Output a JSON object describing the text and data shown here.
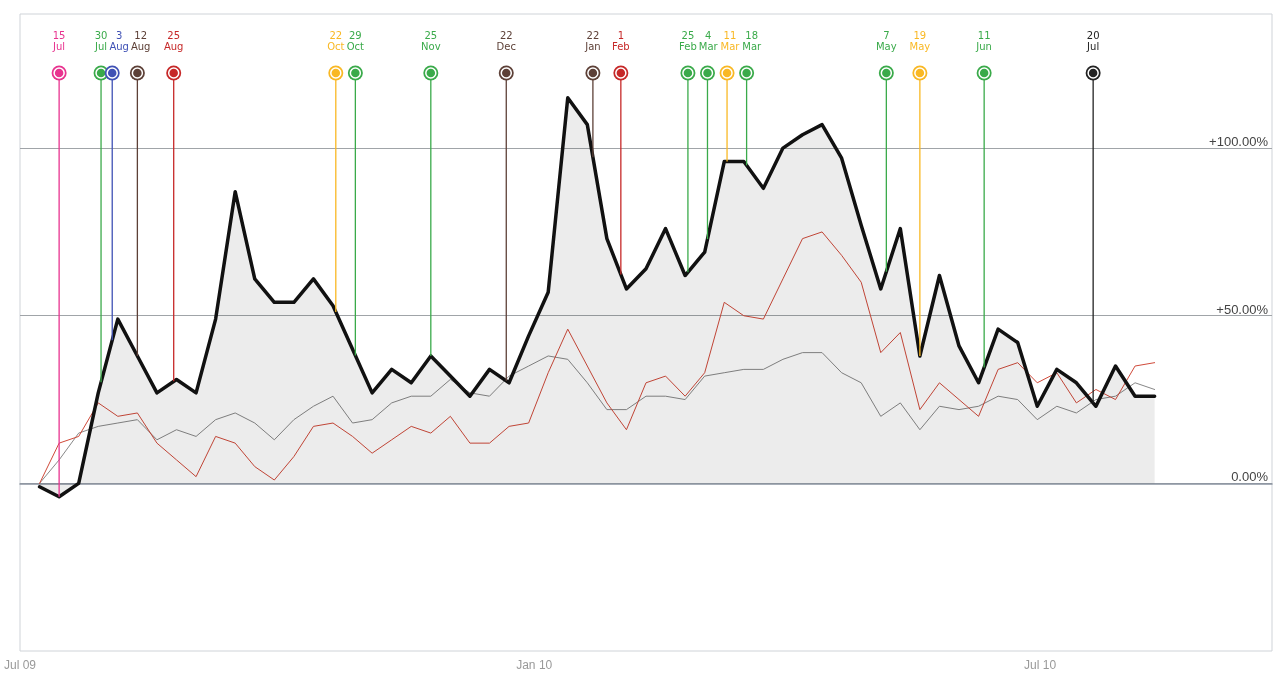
{
  "chart_data": {
    "type": "line",
    "x": [
      "2009-07-08",
      "2009-07-15",
      "2009-07-22",
      "2009-07-29",
      "2009-08-05",
      "2009-08-12",
      "2009-08-19",
      "2009-08-26",
      "2009-09-02",
      "2009-09-09",
      "2009-09-16",
      "2009-09-23",
      "2009-09-30",
      "2009-10-07",
      "2009-10-14",
      "2009-10-21",
      "2009-10-28",
      "2009-11-04",
      "2009-11-11",
      "2009-11-18",
      "2009-11-25",
      "2009-12-02",
      "2009-12-09",
      "2009-12-16",
      "2009-12-23",
      "2009-12-30",
      "2010-01-06",
      "2010-01-13",
      "2010-01-20",
      "2010-01-27",
      "2010-02-03",
      "2010-02-10",
      "2010-02-17",
      "2010-02-24",
      "2010-03-03",
      "2010-03-10",
      "2010-03-17",
      "2010-03-24",
      "2010-03-31",
      "2010-04-07",
      "2010-04-14",
      "2010-04-21",
      "2010-04-28",
      "2010-05-05",
      "2010-05-12",
      "2010-05-19",
      "2010-05-26",
      "2010-06-02",
      "2010-06-09",
      "2010-06-16",
      "2010-06-23",
      "2010-06-30",
      "2010-07-07",
      "2010-07-14",
      "2010-07-21",
      "2010-07-28",
      "2010-08-04",
      "2010-08-11"
    ],
    "series": [
      {
        "type": "area",
        "color": "#111111",
        "values": [
          -1,
          -4,
          0,
          27,
          49,
          38,
          27,
          31,
          27,
          49,
          87,
          61,
          54,
          54,
          61,
          53,
          40,
          27,
          34,
          30,
          38,
          32,
          26,
          34,
          30,
          44,
          57,
          115,
          107,
          73,
          58,
          64,
          76,
          62,
          69,
          96,
          96,
          88,
          100,
          104,
          107,
          97,
          77,
          58,
          76,
          38,
          62,
          41,
          30,
          46,
          42,
          23,
          34,
          30,
          23,
          35,
          26,
          26
        ]
      },
      {
        "color": "#d04a3a",
        "values": [
          0,
          12,
          14,
          24,
          20,
          21,
          12,
          7,
          2,
          14,
          12,
          5,
          1,
          8,
          17,
          18,
          14,
          9,
          13,
          17,
          15,
          20,
          12,
          12,
          17,
          18,
          33,
          46,
          35,
          24,
          16,
          30,
          32,
          26,
          33,
          54,
          50,
          49,
          61,
          73,
          75,
          68,
          60,
          39,
          45,
          22,
          30,
          25,
          20,
          34,
          36,
          30,
          33,
          24,
          28,
          25,
          35,
          36
        ]
      },
      {
        "color": "#888888",
        "values": [
          0,
          7,
          15,
          17,
          18,
          19,
          13,
          16,
          14,
          19,
          21,
          18,
          13,
          19,
          23,
          26,
          18,
          19,
          24,
          26,
          26,
          31,
          27,
          26,
          32,
          35,
          38,
          37,
          30,
          22,
          22,
          26,
          26,
          25,
          32,
          33,
          34,
          34,
          37,
          39,
          39,
          33,
          30,
          20,
          24,
          16,
          23,
          22,
          23,
          26,
          25,
          19,
          23,
          21,
          25,
          26,
          30,
          28
        ]
      }
    ],
    "xlim": [
      "2009-07-01",
      "2010-09-22"
    ],
    "xticks": [
      {
        "value": "2009-07-01",
        "label": "Jul 09"
      },
      {
        "value": "2010-01-01",
        "label": "Jan 10"
      },
      {
        "value": "2010-07-01",
        "label": "Jul 10"
      }
    ],
    "ylim": [
      -50,
      140
    ],
    "yticks": [
      {
        "value": 0,
        "label": "0.00%"
      },
      {
        "value": 50,
        "label": "+50.00%"
      },
      {
        "value": 100,
        "label": "+100.00%"
      }
    ],
    "grid": "y",
    "marker": "none",
    "line_style": "solid",
    "ref_lines": [
      {
        "axis": "x",
        "value": "2009-07-15",
        "label": "15 Jul",
        "color": "#e8338f"
      },
      {
        "axis": "x",
        "value": "2009-07-30",
        "label": "30 Jul",
        "color": "#3aaa4a"
      },
      {
        "axis": "x",
        "value": "2009-08-03",
        "label": "3 Aug",
        "color": "#3f51b5"
      },
      {
        "axis": "x",
        "value": "2009-08-12",
        "label": "12 Aug",
        "color": "#5d4037"
      },
      {
        "axis": "x",
        "value": "2009-08-25",
        "label": "25 Aug",
        "color": "#c62828"
      },
      {
        "axis": "x",
        "value": "2009-10-22",
        "label": "22 Oct",
        "color": "#f9b824"
      },
      {
        "axis": "x",
        "value": "2009-10-29",
        "label": "29 Oct",
        "color": "#3aaa4a"
      },
      {
        "axis": "x",
        "value": "2009-11-25",
        "label": "25 Nov",
        "color": "#3aaa4a"
      },
      {
        "axis": "x",
        "value": "2009-12-22",
        "label": "22 Dec",
        "color": "#5d4037"
      },
      {
        "axis": "x",
        "value": "2010-01-22",
        "label": "22 Jan",
        "color": "#5d4037"
      },
      {
        "axis": "x",
        "value": "2010-02-01",
        "label": "1 Feb",
        "color": "#c62828"
      },
      {
        "axis": "x",
        "value": "2010-02-25",
        "label": "25 Feb",
        "color": "#3aaa4a"
      },
      {
        "axis": "x",
        "value": "2010-03-04",
        "label": "4 Mar",
        "color": "#3aaa4a"
      },
      {
        "axis": "x",
        "value": "2010-03-11",
        "label": "11 Mar",
        "color": "#f9b824"
      },
      {
        "axis": "x",
        "value": "2010-03-18",
        "label": "18 Mar",
        "color": "#3aaa4a"
      },
      {
        "axis": "x",
        "value": "2010-05-07",
        "label": "7 May",
        "color": "#3aaa4a"
      },
      {
        "axis": "x",
        "value": "2010-05-19",
        "label": "19 May",
        "color": "#f9b824"
      },
      {
        "axis": "x",
        "value": "2010-06-11",
        "label": "11 Jun",
        "color": "#3aaa4a"
      },
      {
        "axis": "x",
        "value": "2010-07-20",
        "label": "20 Jul",
        "color": "#222222"
      }
    ]
  }
}
